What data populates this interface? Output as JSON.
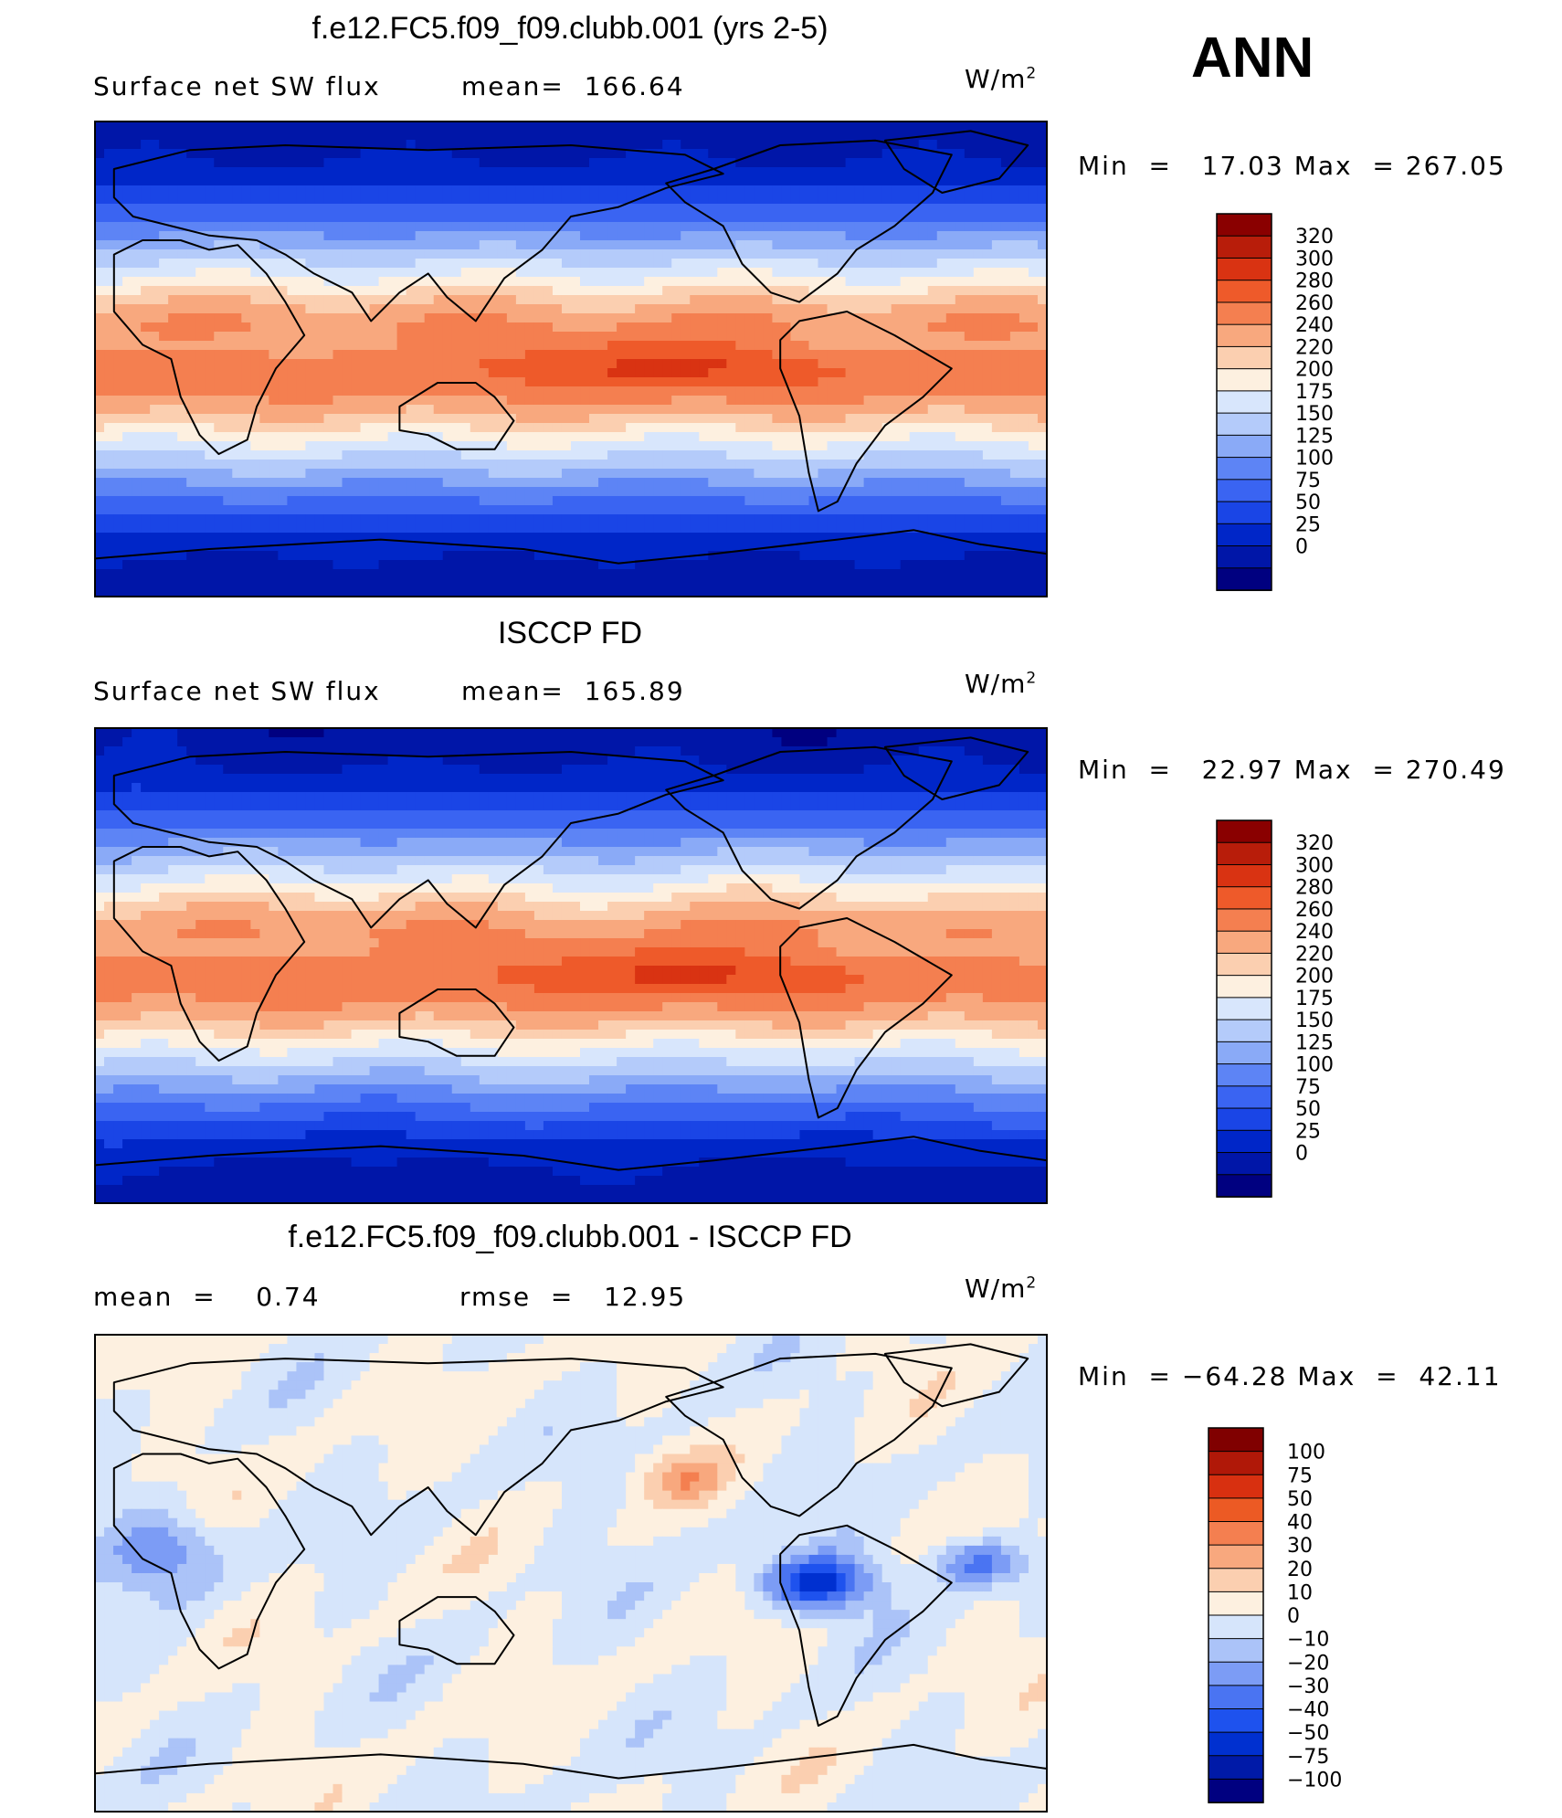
{
  "season": "ANN",
  "units_base": "W/m",
  "units_exp": "2",
  "palettes": {
    "field": [
      "#000080",
      "#0016a8",
      "#0026c8",
      "#1a45e6",
      "#3a64f2",
      "#5d84f5",
      "#8aaaf7",
      "#b4cbfa",
      "#d8e6fc",
      "#fdf0e0",
      "#fbcfb0",
      "#f8a87e",
      "#f47f50",
      "#ee5a2a",
      "#d93312",
      "#b81d0a",
      "#8a0000"
    ],
    "diff": [
      "#000080",
      "#001aa8",
      "#0030d0",
      "#1e52ee",
      "#4a74f2",
      "#7c9cf5",
      "#abc3f8",
      "#d6e5fb",
      "#fdf0e0",
      "#fbcfb0",
      "#f8a87e",
      "#f47f50",
      "#ec5a24",
      "#d83010",
      "#b01808",
      "#800000"
    ]
  },
  "chart_data": [
    {
      "type": "heatmap",
      "title": "f.e12.FC5.f09_f09.clubb.001 (yrs 2-5)",
      "left_label": "Surface net SW flux",
      "mean_label": "mean=",
      "mean": "166.64",
      "min_label": "Min  =",
      "min": "17.03",
      "max_label": "Max  =",
      "max": "267.05",
      "levels": [
        "320",
        "300",
        "280",
        "260",
        "240",
        "220",
        "200",
        "175",
        "150",
        "125",
        "100",
        "75",
        "50",
        "25",
        "0"
      ]
    },
    {
      "type": "heatmap",
      "title": "ISCCP FD",
      "left_label": "Surface net SW flux",
      "mean_label": "mean=",
      "mean": "165.89",
      "min_label": "Min  =",
      "min": "22.97",
      "max_label": "Max  =",
      "max": "270.49",
      "levels": [
        "320",
        "300",
        "280",
        "260",
        "240",
        "220",
        "200",
        "175",
        "150",
        "125",
        "100",
        "75",
        "50",
        "25",
        "0"
      ]
    },
    {
      "type": "heatmap",
      "title": "f.e12.FC5.f09_f09.clubb.001 - ISCCP FD",
      "mean_label": "mean  =",
      "mean": "0.74",
      "rmse_label": "rmse  =",
      "rmse": "12.95",
      "min_label": "Min  =",
      "min": "−64.28",
      "max_label": "Max  =",
      "max": "42.11",
      "levels": [
        "100",
        "75",
        "50",
        "40",
        "30",
        "20",
        "10",
        "0",
        "−10",
        "−20",
        "−30",
        "−40",
        "−50",
        "−75",
        "−100"
      ]
    }
  ]
}
